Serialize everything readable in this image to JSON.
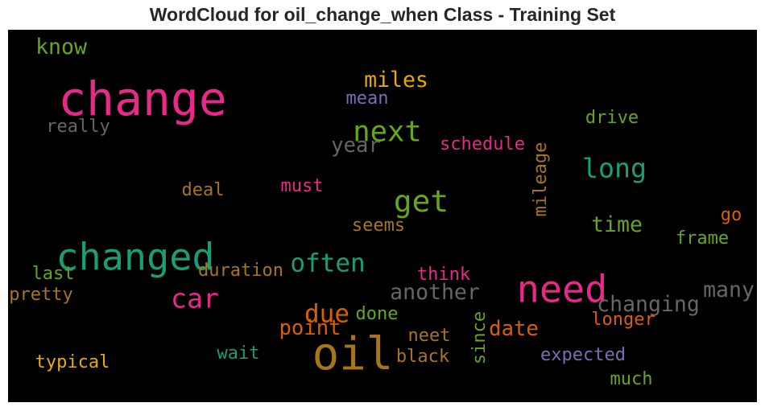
{
  "chart_data": {
    "type": "wordcloud",
    "title": "WordCloud for oil_change_when Class - Training Set",
    "background": "#000000",
    "words": [
      {
        "text": "change",
        "weight": 1.0,
        "color": "#e7298a",
        "vertical": false
      },
      {
        "text": "oil",
        "weight": 0.95,
        "color": "#a6761d",
        "vertical": false
      },
      {
        "text": "changed",
        "weight": 0.75,
        "color": "#1b9e77",
        "vertical": false
      },
      {
        "text": "need",
        "weight": 0.75,
        "color": "#e7298a",
        "vertical": false
      },
      {
        "text": "get",
        "weight": 0.55,
        "color": "#66a61e",
        "vertical": false
      },
      {
        "text": "next",
        "weight": 0.5,
        "color": "#66a61e",
        "vertical": false
      },
      {
        "text": "long",
        "weight": 0.45,
        "color": "#1b9e77",
        "vertical": false
      },
      {
        "text": "car",
        "weight": 0.45,
        "color": "#e7298a",
        "vertical": false
      },
      {
        "text": "often",
        "weight": 0.4,
        "color": "#1b9e77",
        "vertical": false
      },
      {
        "text": "due",
        "weight": 0.4,
        "color": "#d95f02",
        "vertical": false
      },
      {
        "text": "know",
        "weight": 0.3,
        "color": "#66a61e",
        "vertical": false
      },
      {
        "text": "miles",
        "weight": 0.3,
        "color": "#e6ab02",
        "vertical": false
      },
      {
        "text": "time",
        "weight": 0.3,
        "color": "#66a61e",
        "vertical": false
      },
      {
        "text": "another",
        "weight": 0.3,
        "color": "#666666",
        "vertical": false
      },
      {
        "text": "changing",
        "weight": 0.3,
        "color": "#666666",
        "vertical": false
      },
      {
        "text": "many",
        "weight": 0.3,
        "color": "#666666",
        "vertical": false
      },
      {
        "text": "date",
        "weight": 0.28,
        "color": "#d95f02",
        "vertical": false
      },
      {
        "text": "year",
        "weight": 0.28,
        "color": "#666666",
        "vertical": false
      },
      {
        "text": "point",
        "weight": 0.28,
        "color": "#d95f02",
        "vertical": false
      },
      {
        "text": "mean",
        "weight": 0.2,
        "color": "#7570b3",
        "vertical": false
      },
      {
        "text": "really",
        "weight": 0.2,
        "color": "#666666",
        "vertical": false
      },
      {
        "text": "drive",
        "weight": 0.2,
        "color": "#66a61e",
        "vertical": false
      },
      {
        "text": "schedule",
        "weight": 0.2,
        "color": "#e7298a",
        "vertical": false
      },
      {
        "text": "mileage",
        "weight": 0.2,
        "color": "#a6761d",
        "vertical": true
      },
      {
        "text": "deal",
        "weight": 0.2,
        "color": "#a6761d",
        "vertical": false
      },
      {
        "text": "must",
        "weight": 0.2,
        "color": "#e7298a",
        "vertical": false
      },
      {
        "text": "seems",
        "weight": 0.2,
        "color": "#a6761d",
        "vertical": false
      },
      {
        "text": "go",
        "weight": 0.2,
        "color": "#d95f02",
        "vertical": false
      },
      {
        "text": "frame",
        "weight": 0.2,
        "color": "#66a61e",
        "vertical": false
      },
      {
        "text": "last",
        "weight": 0.2,
        "color": "#66a61e",
        "vertical": false
      },
      {
        "text": "duration",
        "weight": 0.2,
        "color": "#a6761d",
        "vertical": false
      },
      {
        "text": "think",
        "weight": 0.2,
        "color": "#e7298a",
        "vertical": false
      },
      {
        "text": "pretty",
        "weight": 0.2,
        "color": "#a6761d",
        "vertical": false
      },
      {
        "text": "done",
        "weight": 0.2,
        "color": "#66a61e",
        "vertical": false
      },
      {
        "text": "longer",
        "weight": 0.2,
        "color": "#d95f02",
        "vertical": false
      },
      {
        "text": "since",
        "weight": 0.2,
        "color": "#66a61e",
        "vertical": true
      },
      {
        "text": "neet",
        "weight": 0.2,
        "color": "#a6761d",
        "vertical": false
      },
      {
        "text": "wait",
        "weight": 0.2,
        "color": "#1b9e77",
        "vertical": false
      },
      {
        "text": "black",
        "weight": 0.2,
        "color": "#a6761d",
        "vertical": false
      },
      {
        "text": "expected",
        "weight": 0.2,
        "color": "#7570b3",
        "vertical": false
      },
      {
        "text": "typical",
        "weight": 0.2,
        "color": "#e6ab02",
        "vertical": false
      },
      {
        "text": "much",
        "weight": 0.2,
        "color": "#66a61e",
        "vertical": false
      }
    ]
  }
}
